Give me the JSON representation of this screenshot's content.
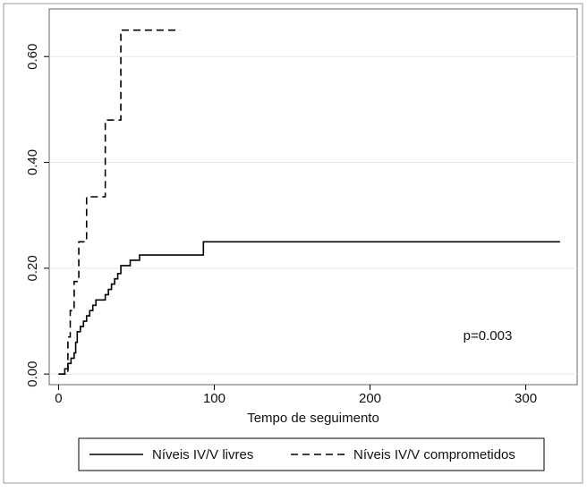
{
  "chart_data": {
    "type": "step",
    "xlabel": "Tempo de seguimento",
    "annotation": "p=0.003",
    "xlim": [
      -6,
      333
    ],
    "ylim": [
      -0.02,
      0.69
    ],
    "xticks": [
      0,
      100,
      200,
      300
    ],
    "yticks": [
      {
        "value": 0,
        "label": "0.00"
      },
      {
        "value": 0.2,
        "label": "0.20"
      },
      {
        "value": 0.4,
        "label": "0.40"
      },
      {
        "value": 0.6,
        "label": "0.60"
      }
    ],
    "grid": true,
    "legend": "bottom",
    "series": [
      {
        "name": "Níveis IV/V livres",
        "color": "#000000",
        "dash": "solid",
        "x": [
          0,
          4,
          6,
          8,
          10,
          11,
          12,
          14,
          16,
          18,
          20,
          22,
          24,
          30,
          32,
          34,
          36,
          38,
          40,
          46,
          52,
          93,
          322
        ],
        "values": [
          0,
          0.01,
          0.02,
          0.03,
          0.04,
          0.06,
          0.08,
          0.09,
          0.1,
          0.11,
          0.12,
          0.13,
          0.14,
          0.15,
          0.16,
          0.17,
          0.18,
          0.19,
          0.205,
          0.215,
          0.225,
          0.25,
          0.25
        ]
      },
      {
        "name": "Níveis IV/V comprometidos",
        "color": "#000000",
        "dash": "dashed",
        "x": [
          0,
          6,
          7.5,
          10,
          13,
          18,
          30,
          40,
          78
        ],
        "values": [
          0,
          0.07,
          0.12,
          0.175,
          0.25,
          0.335,
          0.48,
          0.65,
          0.65
        ]
      }
    ]
  }
}
